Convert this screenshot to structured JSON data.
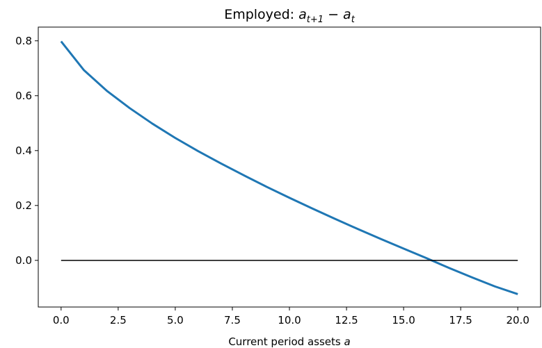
{
  "chart_data": {
    "type": "line",
    "title_parts": [
      "Employed: ",
      "a",
      "t+1",
      " − ",
      "a",
      "t"
    ],
    "xlabel_parts": [
      "Current period assets ",
      "a"
    ],
    "ylabel": "",
    "xlim": [
      -1.0,
      21.0
    ],
    "ylim": [
      -0.17,
      0.85
    ],
    "xticks": [
      0.0,
      2.5,
      5.0,
      7.5,
      10.0,
      12.5,
      15.0,
      17.5,
      20.0
    ],
    "xtick_labels": [
      "0.0",
      "2.5",
      "5.0",
      "7.5",
      "10.0",
      "12.5",
      "15.0",
      "17.5",
      "20.0"
    ],
    "yticks": [
      0.0,
      0.2,
      0.4,
      0.6,
      0.8
    ],
    "ytick_labels": [
      "0.0",
      "0.2",
      "0.4",
      "0.6",
      "0.8"
    ],
    "grid": false,
    "series": [
      {
        "color": "#1f77b4",
        "x": [
          0,
          1,
          2,
          3,
          4,
          5,
          6,
          7,
          8,
          9,
          10,
          11,
          12,
          13,
          14,
          15,
          16,
          17,
          18,
          19,
          20
        ],
        "y": [
          0.798,
          0.693,
          0.618,
          0.555,
          0.498,
          0.446,
          0.398,
          0.353,
          0.31,
          0.268,
          0.228,
          0.189,
          0.151,
          0.114,
          0.078,
          0.043,
          0.008,
          -0.028,
          -0.062,
          -0.095,
          -0.123
        ]
      },
      {
        "color": "#000000",
        "x": [
          0,
          20
        ],
        "y": [
          0,
          0
        ]
      }
    ]
  }
}
